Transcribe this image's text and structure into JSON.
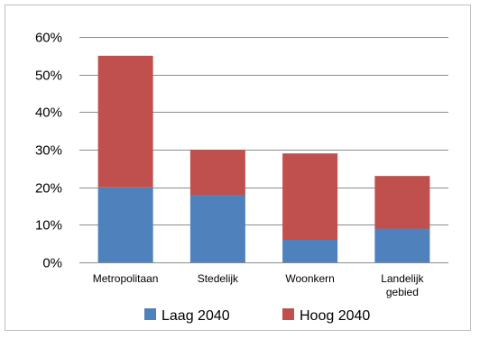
{
  "chart_data": {
    "type": "bar",
    "stacked": true,
    "categories": [
      [
        "Metropolitaan"
      ],
      [
        "Stedelijk"
      ],
      [
        "Woonkern"
      ],
      [
        "Landelijk",
        "gebied"
      ]
    ],
    "series": [
      {
        "name": "Laag 2040",
        "color": "#4f81bd",
        "values": [
          20,
          18,
          6,
          9
        ]
      },
      {
        "name": "Hoog 2040",
        "color": "#c0504d",
        "values": [
          35,
          12,
          23,
          14
        ]
      }
    ],
    "yticks": [
      "0%",
      "10%",
      "20%",
      "30%",
      "40%",
      "50%",
      "60%"
    ],
    "ylim": [
      0,
      60
    ],
    "grid": true,
    "legend": "bottom"
  }
}
